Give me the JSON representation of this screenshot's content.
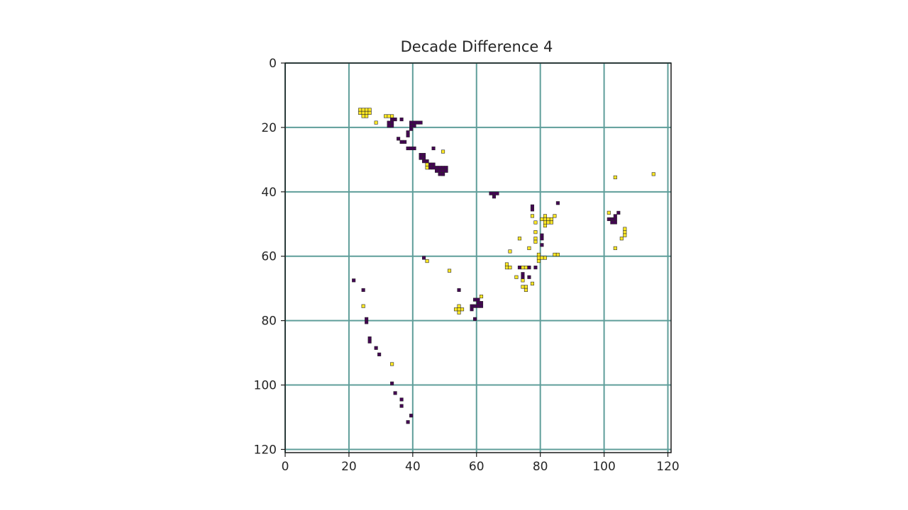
{
  "chart_data": {
    "type": "heatmap",
    "title": "Decade Difference 4",
    "xlabel": "",
    "ylabel": "",
    "xlim": [
      0,
      121
    ],
    "ylim": [
      121,
      0
    ],
    "y_inverted": true,
    "grid": true,
    "x_ticks": [
      0,
      20,
      40,
      60,
      80,
      100,
      120
    ],
    "x_tick_labels": [
      "0",
      "20",
      "40",
      "60",
      "80",
      "100",
      "120"
    ],
    "y_ticks": [
      0,
      20,
      40,
      60,
      80,
      100,
      120
    ],
    "y_tick_labels": [
      "0",
      "20",
      "40",
      "60",
      "80",
      "100",
      "120"
    ],
    "colors": {
      "positive": "#fde725",
      "negative": "#440154",
      "grid": "#5f9e9a",
      "background": "#ffffff"
    },
    "positive_cells": [
      [
        23,
        14
      ],
      [
        24,
        14
      ],
      [
        25,
        14
      ],
      [
        26,
        14
      ],
      [
        23,
        15
      ],
      [
        24,
        15
      ],
      [
        25,
        15
      ],
      [
        26,
        15
      ],
      [
        24,
        16
      ],
      [
        25,
        16
      ],
      [
        31,
        16
      ],
      [
        32,
        16
      ],
      [
        33,
        16
      ],
      [
        28,
        18
      ],
      [
        44,
        31
      ],
      [
        44,
        32
      ],
      [
        49,
        27
      ],
      [
        49,
        34
      ],
      [
        103,
        35
      ],
      [
        115,
        34
      ],
      [
        77,
        47
      ],
      [
        81,
        47
      ],
      [
        84,
        47
      ],
      [
        80,
        48
      ],
      [
        81,
        48
      ],
      [
        82,
        48
      ],
      [
        83,
        48
      ],
      [
        78,
        49
      ],
      [
        81,
        49
      ],
      [
        82,
        49
      ],
      [
        83,
        49
      ],
      [
        81,
        50
      ],
      [
        78,
        52
      ],
      [
        78,
        54
      ],
      [
        73,
        54
      ],
      [
        78,
        55
      ],
      [
        76,
        57
      ],
      [
        70,
        58
      ],
      [
        79,
        59
      ],
      [
        79,
        60
      ],
      [
        80,
        60
      ],
      [
        81,
        60
      ],
      [
        79,
        61
      ],
      [
        84,
        59
      ],
      [
        85,
        59
      ],
      [
        101,
        46
      ],
      [
        106,
        51
      ],
      [
        106,
        52
      ],
      [
        106,
        53
      ],
      [
        105,
        54
      ],
      [
        103,
        57
      ],
      [
        69,
        62
      ],
      [
        69,
        63
      ],
      [
        70,
        63
      ],
      [
        74,
        63
      ],
      [
        75,
        63
      ],
      [
        72,
        66
      ],
      [
        74,
        67
      ],
      [
        74,
        69
      ],
      [
        75,
        69
      ],
      [
        75,
        70
      ],
      [
        77,
        68
      ],
      [
        44,
        61
      ],
      [
        51,
        64
      ],
      [
        24,
        75
      ],
      [
        33,
        93
      ],
      [
        54,
        75
      ],
      [
        53,
        76
      ],
      [
        54,
        76
      ],
      [
        55,
        76
      ],
      [
        54,
        77
      ],
      [
        61,
        72
      ]
    ],
    "negative_cells": [
      [
        33,
        17
      ],
      [
        34,
        17
      ],
      [
        32,
        18
      ],
      [
        33,
        18
      ],
      [
        32,
        19
      ],
      [
        33,
        19
      ],
      [
        36,
        17
      ],
      [
        39,
        18
      ],
      [
        40,
        18
      ],
      [
        41,
        18
      ],
      [
        42,
        18
      ],
      [
        39,
        19
      ],
      [
        40,
        19
      ],
      [
        39,
        20
      ],
      [
        38,
        21
      ],
      [
        38,
        22
      ],
      [
        35,
        23
      ],
      [
        36,
        24
      ],
      [
        37,
        24
      ],
      [
        38,
        26
      ],
      [
        39,
        26
      ],
      [
        40,
        26
      ],
      [
        46,
        26
      ],
      [
        42,
        28
      ],
      [
        43,
        28
      ],
      [
        42,
        29
      ],
      [
        43,
        29
      ],
      [
        43,
        30
      ],
      [
        44,
        30
      ],
      [
        45,
        31
      ],
      [
        46,
        31
      ],
      [
        45,
        32
      ],
      [
        46,
        32
      ],
      [
        47,
        32
      ],
      [
        48,
        32
      ],
      [
        49,
        32
      ],
      [
        50,
        32
      ],
      [
        47,
        33
      ],
      [
        48,
        33
      ],
      [
        49,
        33
      ],
      [
        50,
        33
      ],
      [
        48,
        34
      ],
      [
        49,
        34
      ],
      [
        64,
        40
      ],
      [
        65,
        40
      ],
      [
        66,
        40
      ],
      [
        65,
        41
      ],
      [
        77,
        44
      ],
      [
        77,
        45
      ],
      [
        85,
        43
      ],
      [
        101,
        48
      ],
      [
        102,
        48
      ],
      [
        103,
        48
      ],
      [
        102,
        49
      ],
      [
        103,
        49
      ],
      [
        103,
        47
      ],
      [
        104,
        46
      ],
      [
        80,
        53
      ],
      [
        80,
        54
      ],
      [
        80,
        56
      ],
      [
        43,
        60
      ],
      [
        73,
        63
      ],
      [
        76,
        63
      ],
      [
        74,
        65
      ],
      [
        74,
        66
      ],
      [
        76,
        66
      ],
      [
        78,
        63
      ],
      [
        21,
        67
      ],
      [
        24,
        70
      ],
      [
        54,
        70
      ],
      [
        59,
        73
      ],
      [
        60,
        73
      ],
      [
        60,
        74
      ],
      [
        61,
        74
      ],
      [
        58,
        75
      ],
      [
        59,
        75
      ],
      [
        60,
        75
      ],
      [
        61,
        75
      ],
      [
        58,
        76
      ],
      [
        59,
        79
      ],
      [
        25,
        79
      ],
      [
        25,
        80
      ],
      [
        26,
        85
      ],
      [
        26,
        86
      ],
      [
        28,
        88
      ],
      [
        29,
        90
      ],
      [
        33,
        99
      ],
      [
        34,
        102
      ],
      [
        36,
        104
      ],
      [
        36,
        106
      ],
      [
        39,
        109
      ],
      [
        38,
        111
      ]
    ]
  }
}
